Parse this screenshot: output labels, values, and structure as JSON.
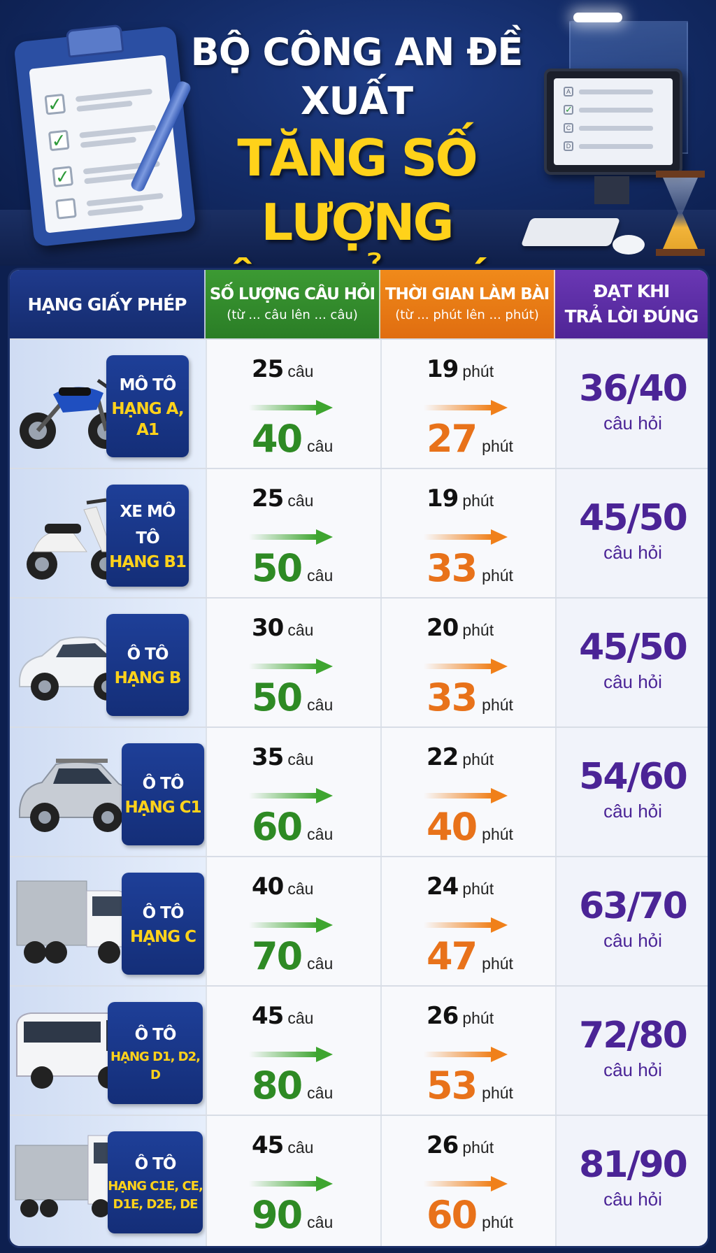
{
  "title": {
    "line1": "BỘ CÔNG AN ĐỀ XUẤT",
    "line2": "TĂNG SỐ LƯỢNG",
    "line3": "CÂU HỎI SÁT HẠCH"
  },
  "colors": {
    "navy": "#142e78",
    "yellow": "#ffd21a",
    "green": "#2e8a24",
    "orange": "#e8721a",
    "purple": "#4b2496"
  },
  "monitor_options": [
    "A",
    "",
    "C",
    "D"
  ],
  "table": {
    "headers": {
      "license": "HẠNG GIẤY PHÉP",
      "questions_main": "SỐ LƯỢNG CÂU HỎI",
      "questions_sub": "(từ ... câu lên ... câu)",
      "time_main": "THỜI GIAN LÀM BÀI",
      "time_sub": "(từ ... phút lên ... phút)",
      "pass_line1": "ĐẠT KHI",
      "pass_line2": "TRẢ LỜI ĐÚNG"
    },
    "unit_questions": "câu",
    "unit_minutes": "phút",
    "pass_unit": "câu hỏi",
    "rows": [
      {
        "vehicle": "motorcycle-icon",
        "label1": "MÔ TÔ",
        "label2": "HẠNG A, A1",
        "q_from": "25",
        "q_to": "40",
        "t_from": "19",
        "t_to": "27",
        "pass": "36/40"
      },
      {
        "vehicle": "scooter-icon",
        "label1": "XE MÔ TÔ",
        "label2": "HẠNG B1",
        "q_from": "25",
        "q_to": "50",
        "t_from": "19",
        "t_to": "33",
        "pass": "45/50"
      },
      {
        "vehicle": "car-icon",
        "label1": "Ô TÔ",
        "label2": "HẠNG B",
        "q_from": "30",
        "q_to": "50",
        "t_from": "20",
        "t_to": "33",
        "pass": "45/50"
      },
      {
        "vehicle": "suv-icon",
        "label1": "Ô TÔ",
        "label2": "HẠNG C1",
        "q_from": "35",
        "q_to": "60",
        "t_from": "22",
        "t_to": "40",
        "pass": "54/60"
      },
      {
        "vehicle": "truck-icon",
        "label1": "Ô TÔ",
        "label2": "HẠNG C",
        "q_from": "40",
        "q_to": "70",
        "t_from": "24",
        "t_to": "47",
        "pass": "63/70"
      },
      {
        "vehicle": "bus-icon",
        "label1": "Ô TÔ",
        "label2": "HẠNG D1, D2, D",
        "q_from": "45",
        "q_to": "80",
        "t_from": "26",
        "t_to": "53",
        "pass": "72/80"
      },
      {
        "vehicle": "semi-truck-icon",
        "label1": "Ô TÔ",
        "label2": "HẠNG C1E, CE, D1E, D2E, DE",
        "q_from": "45",
        "q_to": "90",
        "t_from": "26",
        "t_to": "60",
        "pass": "81/90"
      }
    ]
  }
}
